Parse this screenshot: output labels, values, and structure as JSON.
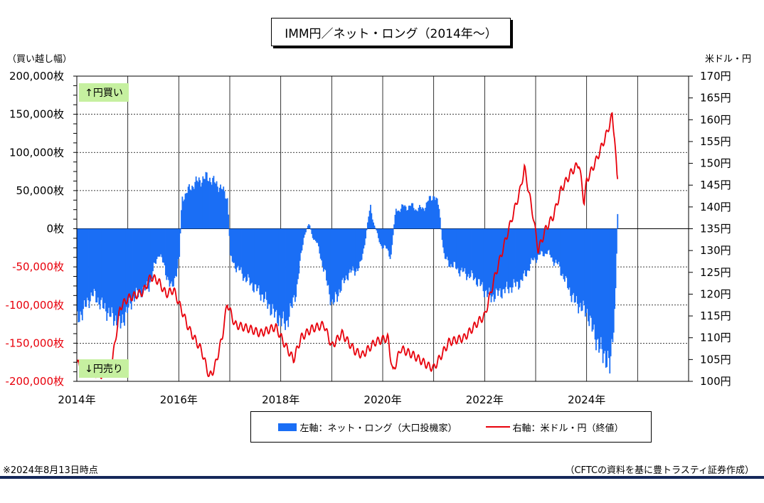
{
  "title": "IMM円／ネット・ロング（2014年～）",
  "left_unit": "（買い越し幅）",
  "right_unit": "米ドル・円",
  "buy_label": "↑円買い",
  "sell_label": "↓円売り",
  "footnote": "※2024年8月13日時点",
  "source": "（CFTCの資料を基に豊トラスティ証券作成）",
  "colors": {
    "bar": "#1a6ef5",
    "line": "#e8000b",
    "label_bg": "#c6f0a0",
    "rule": "#15285a"
  },
  "chart_data": {
    "type": "bar+line",
    "left_axis": {
      "ylim": [
        -200000,
        200000
      ],
      "ticks": [
        "200,000枚",
        "150,000枚",
        "100,000枚",
        "50,000枚",
        "0枚",
        "-50,000枚",
        "-100,000枚",
        "-150,000枚",
        "-200,000枚"
      ]
    },
    "right_axis": {
      "ylim": [
        100,
        170
      ],
      "ticks": [
        "170円",
        "165円",
        "160円",
        "155円",
        "150円",
        "145円",
        "140円",
        "135円",
        "130円",
        "125円",
        "120円",
        "115円",
        "110円",
        "105円",
        "100円"
      ]
    },
    "x_axis": {
      "range": [
        2014,
        2026
      ],
      "ticks": [
        "2014年",
        "2016年",
        "2018年",
        "2020年",
        "2022年",
        "2024年"
      ]
    },
    "series": [
      {
        "name": "左軸：ネット・ロング（大口投機家）",
        "type": "bar",
        "axis": "left",
        "points": [
          [
            2014.0,
            -120000
          ],
          [
            2014.3,
            -85000
          ],
          [
            2014.6,
            -110000
          ],
          [
            2014.85,
            -125000
          ],
          [
            2015.1,
            -90000
          ],
          [
            2015.4,
            -75000
          ],
          [
            2015.6,
            -30000
          ],
          [
            2015.85,
            -80000
          ],
          [
            2016.0,
            -40000
          ],
          [
            2016.05,
            40000
          ],
          [
            2016.3,
            60000
          ],
          [
            2016.55,
            68000
          ],
          [
            2016.8,
            55000
          ],
          [
            2016.95,
            40000
          ],
          [
            2017.0,
            -40000
          ],
          [
            2017.3,
            -65000
          ],
          [
            2017.6,
            -85000
          ],
          [
            2017.9,
            -115000
          ],
          [
            2018.1,
            -125000
          ],
          [
            2018.3,
            -80000
          ],
          [
            2018.45,
            -5000
          ],
          [
            2018.55,
            3000
          ],
          [
            2018.75,
            -30000
          ],
          [
            2019.0,
            -100000
          ],
          [
            2019.3,
            -60000
          ],
          [
            2019.55,
            -50000
          ],
          [
            2019.75,
            28000
          ],
          [
            2019.9,
            -15000
          ],
          [
            2020.15,
            -35000
          ],
          [
            2020.25,
            25000
          ],
          [
            2020.5,
            30000
          ],
          [
            2020.75,
            25000
          ],
          [
            2021.0,
            45000
          ],
          [
            2021.1,
            25000
          ],
          [
            2021.2,
            -40000
          ],
          [
            2021.5,
            -55000
          ],
          [
            2021.8,
            -65000
          ],
          [
            2022.1,
            -90000
          ],
          [
            2022.4,
            -80000
          ],
          [
            2022.7,
            -70000
          ],
          [
            2022.95,
            -40000
          ],
          [
            2023.2,
            -30000
          ],
          [
            2023.45,
            -50000
          ],
          [
            2023.75,
            -95000
          ],
          [
            2024.0,
            -110000
          ],
          [
            2024.2,
            -150000
          ],
          [
            2024.45,
            -180000
          ],
          [
            2024.55,
            -100000
          ],
          [
            2024.6,
            25000
          ]
        ]
      },
      {
        "name": "右軸：米ドル・円（終値）",
        "type": "line",
        "axis": "right",
        "points": [
          [
            2014.0,
            104.5
          ],
          [
            2014.1,
            102.5
          ],
          [
            2014.3,
            102
          ],
          [
            2014.5,
            101.5
          ],
          [
            2014.7,
            105
          ],
          [
            2014.85,
            117
          ],
          [
            2015.0,
            119
          ],
          [
            2015.3,
            120.5
          ],
          [
            2015.45,
            124
          ],
          [
            2015.6,
            123
          ],
          [
            2015.75,
            120
          ],
          [
            2015.9,
            121
          ],
          [
            2016.0,
            118
          ],
          [
            2016.2,
            112
          ],
          [
            2016.45,
            107
          ],
          [
            2016.6,
            101
          ],
          [
            2016.7,
            103
          ],
          [
            2016.85,
            110
          ],
          [
            2016.95,
            118
          ],
          [
            2017.1,
            113
          ],
          [
            2017.4,
            112
          ],
          [
            2017.6,
            111
          ],
          [
            2017.9,
            112.5
          ],
          [
            2018.1,
            108
          ],
          [
            2018.25,
            105
          ],
          [
            2018.4,
            110
          ],
          [
            2018.6,
            112
          ],
          [
            2018.85,
            113
          ],
          [
            2019.0,
            108
          ],
          [
            2019.2,
            111
          ],
          [
            2019.45,
            107
          ],
          [
            2019.6,
            106
          ],
          [
            2019.85,
            109
          ],
          [
            2020.1,
            110
          ],
          [
            2020.2,
            102
          ],
          [
            2020.35,
            107.5
          ],
          [
            2020.6,
            106
          ],
          [
            2020.9,
            103.5
          ],
          [
            2021.0,
            103
          ],
          [
            2021.3,
            109
          ],
          [
            2021.6,
            110
          ],
          [
            2021.9,
            114
          ],
          [
            2022.0,
            115
          ],
          [
            2022.2,
            124
          ],
          [
            2022.35,
            130
          ],
          [
            2022.5,
            136
          ],
          [
            2022.7,
            144
          ],
          [
            2022.78,
            149
          ],
          [
            2022.95,
            138
          ],
          [
            2023.05,
            130
          ],
          [
            2023.2,
            135
          ],
          [
            2023.35,
            138
          ],
          [
            2023.5,
            144
          ],
          [
            2023.7,
            148
          ],
          [
            2023.85,
            150
          ],
          [
            2023.95,
            141
          ],
          [
            2024.0,
            146
          ],
          [
            2024.2,
            151
          ],
          [
            2024.4,
            157
          ],
          [
            2024.5,
            161
          ],
          [
            2024.55,
            156
          ],
          [
            2024.6,
            146
          ],
          [
            2024.62,
            147
          ]
        ]
      }
    ],
    "annotations": [
      "↑円買い",
      "↓円売り"
    ],
    "grid": true
  }
}
